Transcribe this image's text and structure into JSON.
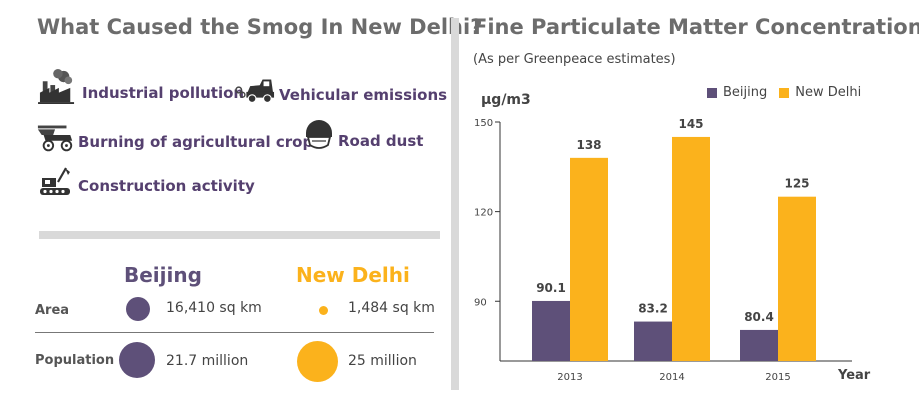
{
  "left": {
    "title": "What Caused the Smog In New Delhi?",
    "causes": [
      {
        "label": "Industrial pollution",
        "icon": "factory-icon"
      },
      {
        "label": "Vehicular emissions",
        "icon": "car-icon"
      },
      {
        "label": "Burning of agricultural crops",
        "icon": "tractor-icon"
      },
      {
        "label": "Road dust",
        "icon": "dust-mask-icon"
      },
      {
        "label": "Construction activity",
        "icon": "excavator-icon"
      }
    ],
    "compare": {
      "cities": [
        "Beijing",
        "New Delhi"
      ],
      "area_label": "Area",
      "population_label": "Population",
      "beijing_area": "16,410 sq km",
      "delhi_area": "1,484 sq km",
      "beijing_population": "21.7 million",
      "delhi_population": "25 million"
    }
  },
  "colors": {
    "beijing": "#5e5079",
    "delhi": "#fbb21c",
    "cause_text": "#55406f",
    "title_gray": "#6c6c6c"
  },
  "chart_data": {
    "type": "bar",
    "title": "Fine Particulate Matter Concentrations",
    "subtitle": "(As per Greenpeace estimates)",
    "ylabel": "µg/m3",
    "xlabel": "Year",
    "categories": [
      "2013",
      "2014",
      "2015"
    ],
    "series": [
      {
        "name": "Beijing",
        "values": [
          90.1,
          83.2,
          80.4
        ],
        "labels": [
          "90.1",
          "83.2",
          "80.4"
        ]
      },
      {
        "name": "New Delhi",
        "values": [
          138,
          145,
          125
        ],
        "labels": [
          "138",
          "145",
          "125"
        ]
      }
    ],
    "yticks": [
      "90",
      "120",
      "150"
    ],
    "ylim": [
      70,
      150
    ],
    "legend_position": "top-right"
  }
}
